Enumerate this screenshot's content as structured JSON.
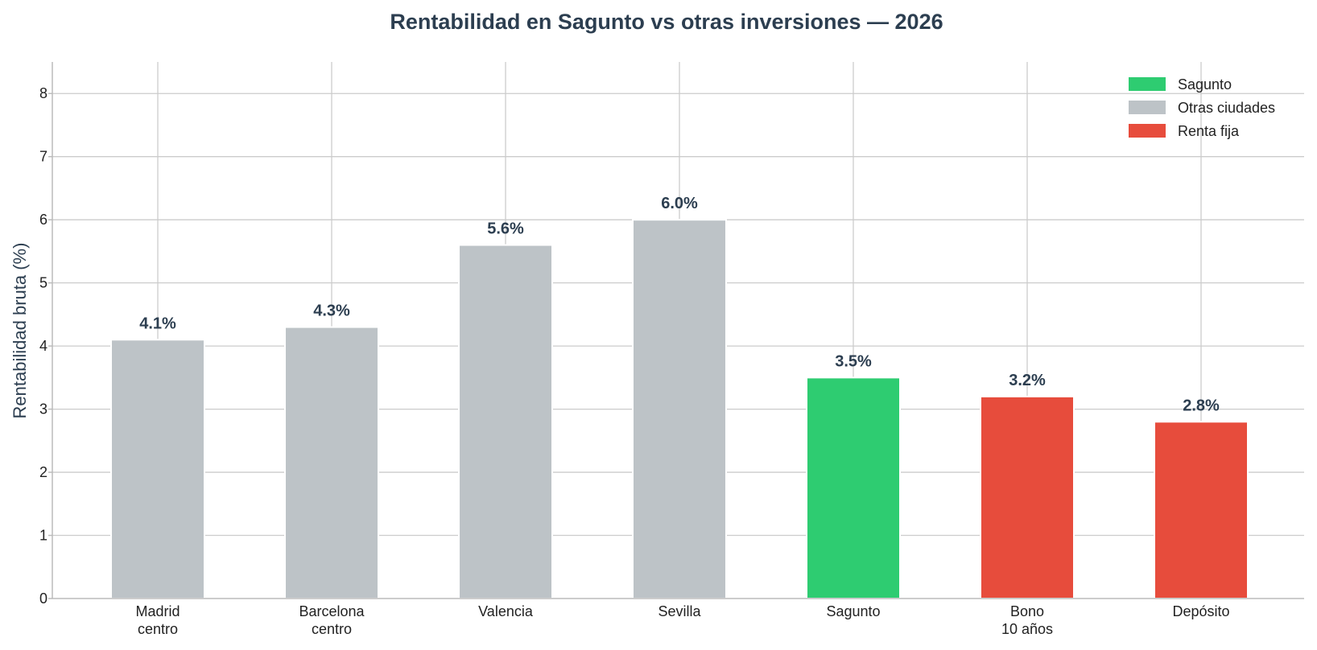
{
  "chart_data": {
    "type": "bar",
    "title": "Rentabilidad en Sagunto vs otras inversiones — 2026",
    "xlabel": "",
    "ylabel": "Rentabilidad bruta (%)",
    "ylim": [
      0,
      8.5
    ],
    "yticks": [
      "0",
      "1",
      "2",
      "3",
      "4",
      "5",
      "6",
      "7",
      "8"
    ],
    "grid": true,
    "legend_position": "top-right",
    "categories": [
      [
        "Madrid",
        "centro"
      ],
      [
        "Barcelona",
        "centro"
      ],
      [
        "Valencia"
      ],
      [
        "Sevilla"
      ],
      [
        "Sagunto"
      ],
      [
        "Bono",
        "10 años"
      ],
      [
        "Depósito"
      ]
    ],
    "values": [
      4.1,
      4.3,
      5.6,
      6.0,
      3.5,
      3.2,
      2.8
    ],
    "value_labels": [
      "4.1%",
      "4.3%",
      "5.6%",
      "6.0%",
      "3.5%",
      "3.2%",
      "2.8%"
    ],
    "bar_groups": [
      "Otras ciudades",
      "Otras ciudades",
      "Otras ciudades",
      "Otras ciudades",
      "Sagunto",
      "Renta fija",
      "Renta fija"
    ],
    "legend": [
      {
        "name": "Sagunto",
        "color": "#2ecc71"
      },
      {
        "name": "Otras ciudades",
        "color": "#bdc3c7"
      },
      {
        "name": "Renta fija",
        "color": "#e74c3c"
      }
    ]
  }
}
